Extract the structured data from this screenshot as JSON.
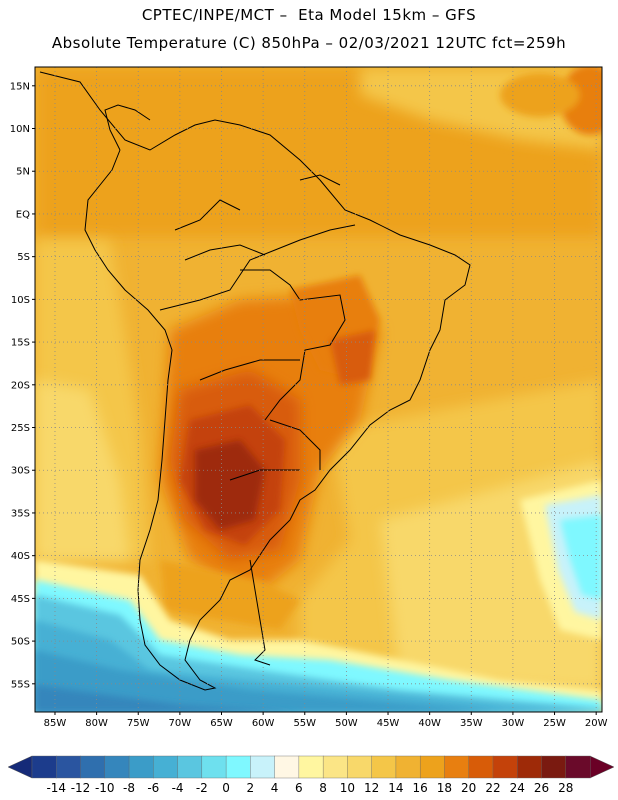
{
  "header": {
    "line1": "CPTEC/INPE/MCT –  Eta Model 15km – GFS",
    "line2": "Absolute Temperature (C) 850hPa – 02/03/2021 12UTC fct=259h"
  },
  "map": {
    "lat_labels": [
      "15N",
      "10N",
      "5N",
      "EQ",
      "5S",
      "10S",
      "15S",
      "20S",
      "25S",
      "30S",
      "35S",
      "40S",
      "45S",
      "50S",
      "55S"
    ],
    "lon_labels": [
      "85W",
      "80W",
      "75W",
      "70W",
      "65W",
      "60W",
      "55W",
      "50W",
      "45W",
      "40W",
      "35W",
      "30W",
      "25W",
      "20W"
    ],
    "lat_values": [
      15,
      10,
      5,
      0,
      -5,
      -10,
      -15,
      -20,
      -25,
      -30,
      -35,
      -40,
      -45,
      -50,
      -55
    ],
    "lon_values": [
      -85,
      -80,
      -75,
      -70,
      -65,
      -60,
      -55,
      -50,
      -45,
      -40,
      -35,
      -30,
      -25,
      -20
    ],
    "grid": "dotted"
  },
  "colorbar": {
    "labels": [
      "-14",
      "-12",
      "-10",
      "-8",
      "-6",
      "-4",
      "-2",
      "0",
      "2",
      "4",
      "6",
      "8",
      "10",
      "12",
      "14",
      "16",
      "18",
      "20",
      "22",
      "24",
      "26",
      "28"
    ],
    "colors": [
      "#1c3c8c",
      "#2a55a0",
      "#2f6fae",
      "#3586bc",
      "#3b9cc8",
      "#46b0d4",
      "#5ac6e0",
      "#6ee0ee",
      "#7ff8ff",
      "#c8f2fa",
      "#fff7e4",
      "#fff6a0",
      "#fbe586",
      "#f8d86a",
      "#f4c648",
      "#f0b232",
      "#eda21c",
      "#e87f10",
      "#d85c08",
      "#c4420a",
      "#9e2a08",
      "#7a1a10",
      "#6a0a2a"
    ],
    "under_color": "#152a78",
    "over_color": "#6a0026"
  }
}
